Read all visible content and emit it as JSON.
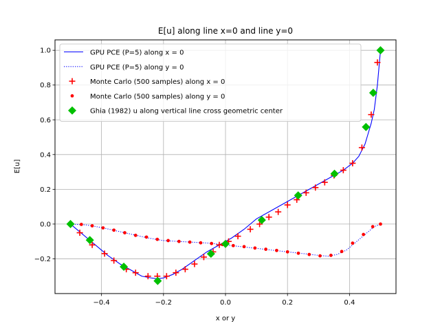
{
  "chart_data": {
    "type": "line",
    "title": "E[u] along line x=0 and line y=0",
    "xlabel": "x or y",
    "ylabel": "E[u]",
    "xlim": [
      -0.55,
      0.55
    ],
    "ylim": [
      -0.4,
      1.06
    ],
    "xticks": [
      -0.4,
      -0.2,
      0.0,
      0.2,
      0.4
    ],
    "xtick_labels": [
      "−0.4",
      "−0.2",
      "0.0",
      "0.2",
      "0.4"
    ],
    "yticks": [
      -0.2,
      0.0,
      0.2,
      0.4,
      0.6,
      0.8,
      1.0
    ],
    "ytick_labels": [
      "−0.2",
      "0.0",
      "0.2",
      "0.4",
      "0.6",
      "0.8",
      "1.0"
    ],
    "grid": true,
    "legend_position": "top-left",
    "series": [
      {
        "name": "GPU PCE (P=5) along x = 0",
        "style": "solid-line",
        "color": "#0000ff",
        "x": [
          -0.5,
          -0.46,
          -0.42,
          -0.38,
          -0.34,
          -0.3,
          -0.27,
          -0.24,
          -0.22,
          -0.2,
          -0.17,
          -0.14,
          -0.1,
          -0.06,
          -0.02,
          0.0,
          0.02,
          0.06,
          0.1,
          0.14,
          0.18,
          0.22,
          0.26,
          0.3,
          0.34,
          0.38,
          0.41,
          0.43,
          0.45,
          0.46,
          0.47,
          0.48,
          0.49,
          0.5
        ],
        "y": [
          0.0,
          -0.06,
          -0.12,
          -0.18,
          -0.23,
          -0.27,
          -0.3,
          -0.31,
          -0.315,
          -0.31,
          -0.29,
          -0.26,
          -0.21,
          -0.16,
          -0.12,
          -0.1,
          -0.08,
          -0.03,
          0.03,
          0.07,
          0.11,
          0.15,
          0.19,
          0.23,
          0.27,
          0.31,
          0.35,
          0.39,
          0.46,
          0.52,
          0.58,
          0.66,
          0.8,
          1.0
        ]
      },
      {
        "name": "GPU PCE (P=5) along y = 0",
        "style": "dotted-line",
        "color": "#0000ff",
        "x": [
          -0.5,
          -0.45,
          -0.4,
          -0.35,
          -0.3,
          -0.25,
          -0.2,
          -0.15,
          -0.1,
          -0.05,
          0.0,
          0.05,
          0.1,
          0.15,
          0.2,
          0.25,
          0.3,
          0.33,
          0.36,
          0.39,
          0.42,
          0.45,
          0.48,
          0.5
        ],
        "y": [
          0.0,
          -0.005,
          -0.02,
          -0.04,
          -0.06,
          -0.08,
          -0.095,
          -0.1,
          -0.105,
          -0.11,
          -0.12,
          -0.13,
          -0.14,
          -0.15,
          -0.16,
          -0.17,
          -0.18,
          -0.185,
          -0.175,
          -0.15,
          -0.105,
          -0.06,
          -0.015,
          0.0
        ]
      },
      {
        "name": "Monte Carlo (500 samples) along x = 0",
        "style": "plus",
        "color": "#ff0000",
        "x": [
          -0.47,
          -0.43,
          -0.39,
          -0.36,
          -0.32,
          -0.29,
          -0.25,
          -0.22,
          -0.19,
          -0.16,
          -0.13,
          -0.1,
          -0.07,
          -0.04,
          -0.02,
          0.01,
          0.04,
          0.08,
          0.11,
          0.14,
          0.17,
          0.2,
          0.23,
          0.26,
          0.29,
          0.32,
          0.35,
          0.38,
          0.41,
          0.44,
          0.47,
          0.49
        ],
        "y": [
          -0.05,
          -0.12,
          -0.17,
          -0.21,
          -0.26,
          -0.28,
          -0.3,
          -0.3,
          -0.3,
          -0.28,
          -0.26,
          -0.23,
          -0.19,
          -0.16,
          -0.12,
          -0.1,
          -0.07,
          -0.03,
          0.0,
          0.04,
          0.07,
          0.11,
          0.14,
          0.18,
          0.21,
          0.24,
          0.28,
          0.31,
          0.35,
          0.44,
          0.63,
          0.93
        ]
      },
      {
        "name": "Monte Carlo (500 samples) along y = 0",
        "style": "dot",
        "color": "#ff0000",
        "x": [
          -0.5,
          -0.465,
          -0.43,
          -0.395,
          -0.36,
          -0.325,
          -0.29,
          -0.255,
          -0.22,
          -0.185,
          -0.15,
          -0.115,
          -0.08,
          -0.045,
          -0.01,
          0.025,
          0.06,
          0.095,
          0.13,
          0.165,
          0.2,
          0.235,
          0.27,
          0.305,
          0.34,
          0.375,
          0.41,
          0.445,
          0.475,
          0.5
        ],
        "y": [
          0.0,
          -0.002,
          -0.01,
          -0.022,
          -0.035,
          -0.05,
          -0.065,
          -0.075,
          -0.088,
          -0.095,
          -0.1,
          -0.104,
          -0.108,
          -0.112,
          -0.118,
          -0.124,
          -0.13,
          -0.138,
          -0.145,
          -0.152,
          -0.16,
          -0.168,
          -0.175,
          -0.183,
          -0.18,
          -0.158,
          -0.11,
          -0.06,
          -0.015,
          0.0
        ]
      },
      {
        "name": "Ghia (1982) u along vertical line cross geometric center",
        "style": "diamond",
        "color": "#00c000",
        "x": [
          -0.5,
          -0.4375,
          -0.3281,
          -0.2188,
          -0.0469,
          0.0,
          0.1172,
          0.2344,
          0.3516,
          0.4531,
          0.4766,
          0.5
        ],
        "y": [
          0.0,
          -0.0922,
          -0.2459,
          -0.3273,
          -0.1712,
          -0.1141,
          0.0231,
          0.1647,
          0.2896,
          0.5587,
          0.7553,
          1.0
        ]
      }
    ]
  }
}
